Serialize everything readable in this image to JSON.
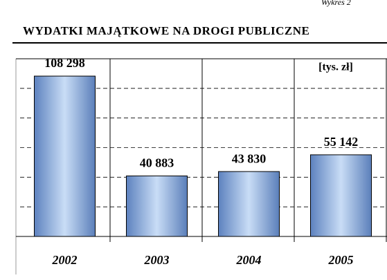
{
  "chart_data": {
    "type": "bar",
    "corner_note": "Wykres 2",
    "title": "WYDATKI MAJĄTKOWE NA DROGI PUBLICZNE",
    "unit_label": "[tys. zł]",
    "categories": [
      "2002",
      "2003",
      "2004",
      "2005"
    ],
    "values": [
      108298,
      40883,
      43830,
      55142
    ],
    "value_labels": [
      "108 298",
      "40 883",
      "43 830",
      "55 142"
    ],
    "color": "#7fa6dc",
    "ylim": [
      0,
      120000
    ],
    "yticks": [
      0,
      20000,
      40000,
      60000,
      80000,
      100000,
      120000
    ],
    "grid": true
  }
}
